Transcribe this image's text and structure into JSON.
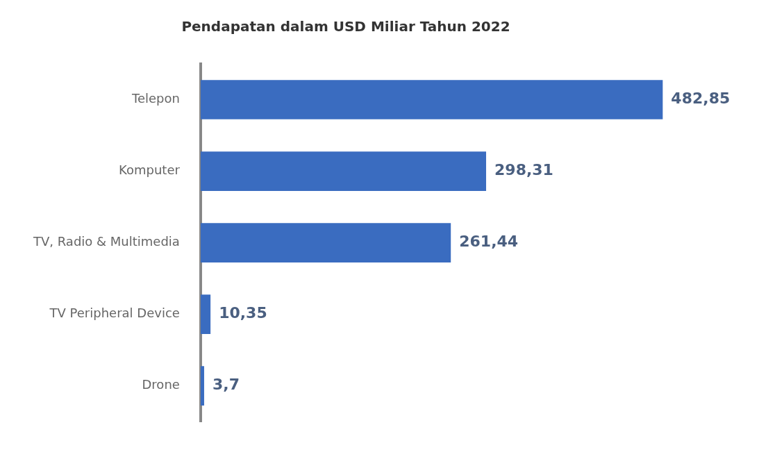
{
  "chart_data": {
    "type": "bar",
    "orientation": "horizontal",
    "title": "Pendapatan dalam USD Miliar Tahun 2022",
    "categories": [
      "Telepon",
      "Komputer",
      "TV, Radio & Multimedia",
      "TV Peripheral Device",
      "Drone"
    ],
    "values": [
      482.85,
      298.31,
      261.44,
      10.35,
      3.7
    ],
    "value_labels": [
      "482,85",
      "298,31",
      "261,44",
      "10,35",
      "3,7"
    ],
    "color": "#3a6cc0",
    "grid": false,
    "legend": false,
    "tick_labels": "y"
  }
}
